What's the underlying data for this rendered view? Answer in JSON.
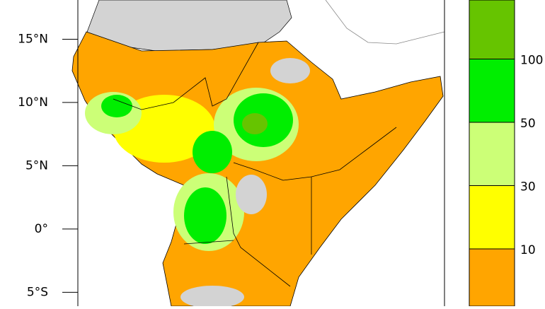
{
  "map": {
    "ylim": [
      -6.1,
      18.1
    ],
    "yticks": [
      {
        "value": 15,
        "label": "15°N"
      },
      {
        "value": 10,
        "label": "10°N"
      },
      {
        "value": 5,
        "label": "5°N"
      },
      {
        "value": 0,
        "label": "0°"
      },
      {
        "value": -5,
        "label": "5°S"
      }
    ]
  },
  "colorbar": {
    "ticks": [
      10,
      30,
      50,
      100
    ],
    "colors": [
      "#ffa500",
      "#ffff00",
      "#ccff77",
      "#00ee00",
      "#66c400"
    ]
  }
}
